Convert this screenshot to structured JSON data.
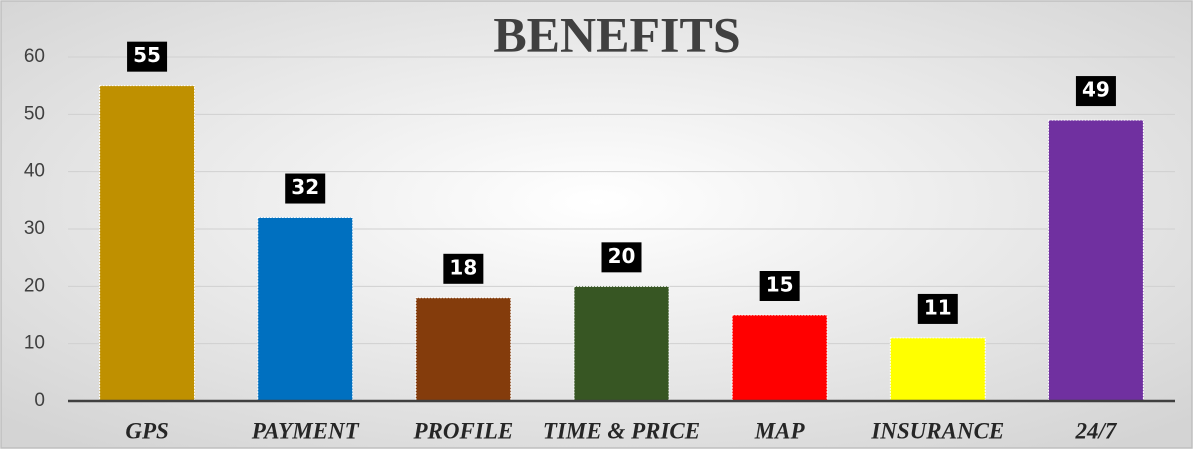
{
  "chart_data": {
    "type": "bar",
    "title": "BENEFITS",
    "categories": [
      "GPS",
      "PAYMENT",
      "PROFILE",
      "TIME & PRICE",
      "MAP",
      "INSURANCE",
      "24/7"
    ],
    "values": [
      55,
      32,
      18,
      20,
      15,
      11,
      49
    ],
    "colors": [
      "#bf9000",
      "#0070c0",
      "#843c0c",
      "#375623",
      "#ff0000",
      "#ffff00",
      "#7030a0"
    ],
    "ylim": [
      0,
      60
    ],
    "yticks": [
      0,
      10,
      20,
      30,
      40,
      50,
      60
    ],
    "grid": true
  }
}
